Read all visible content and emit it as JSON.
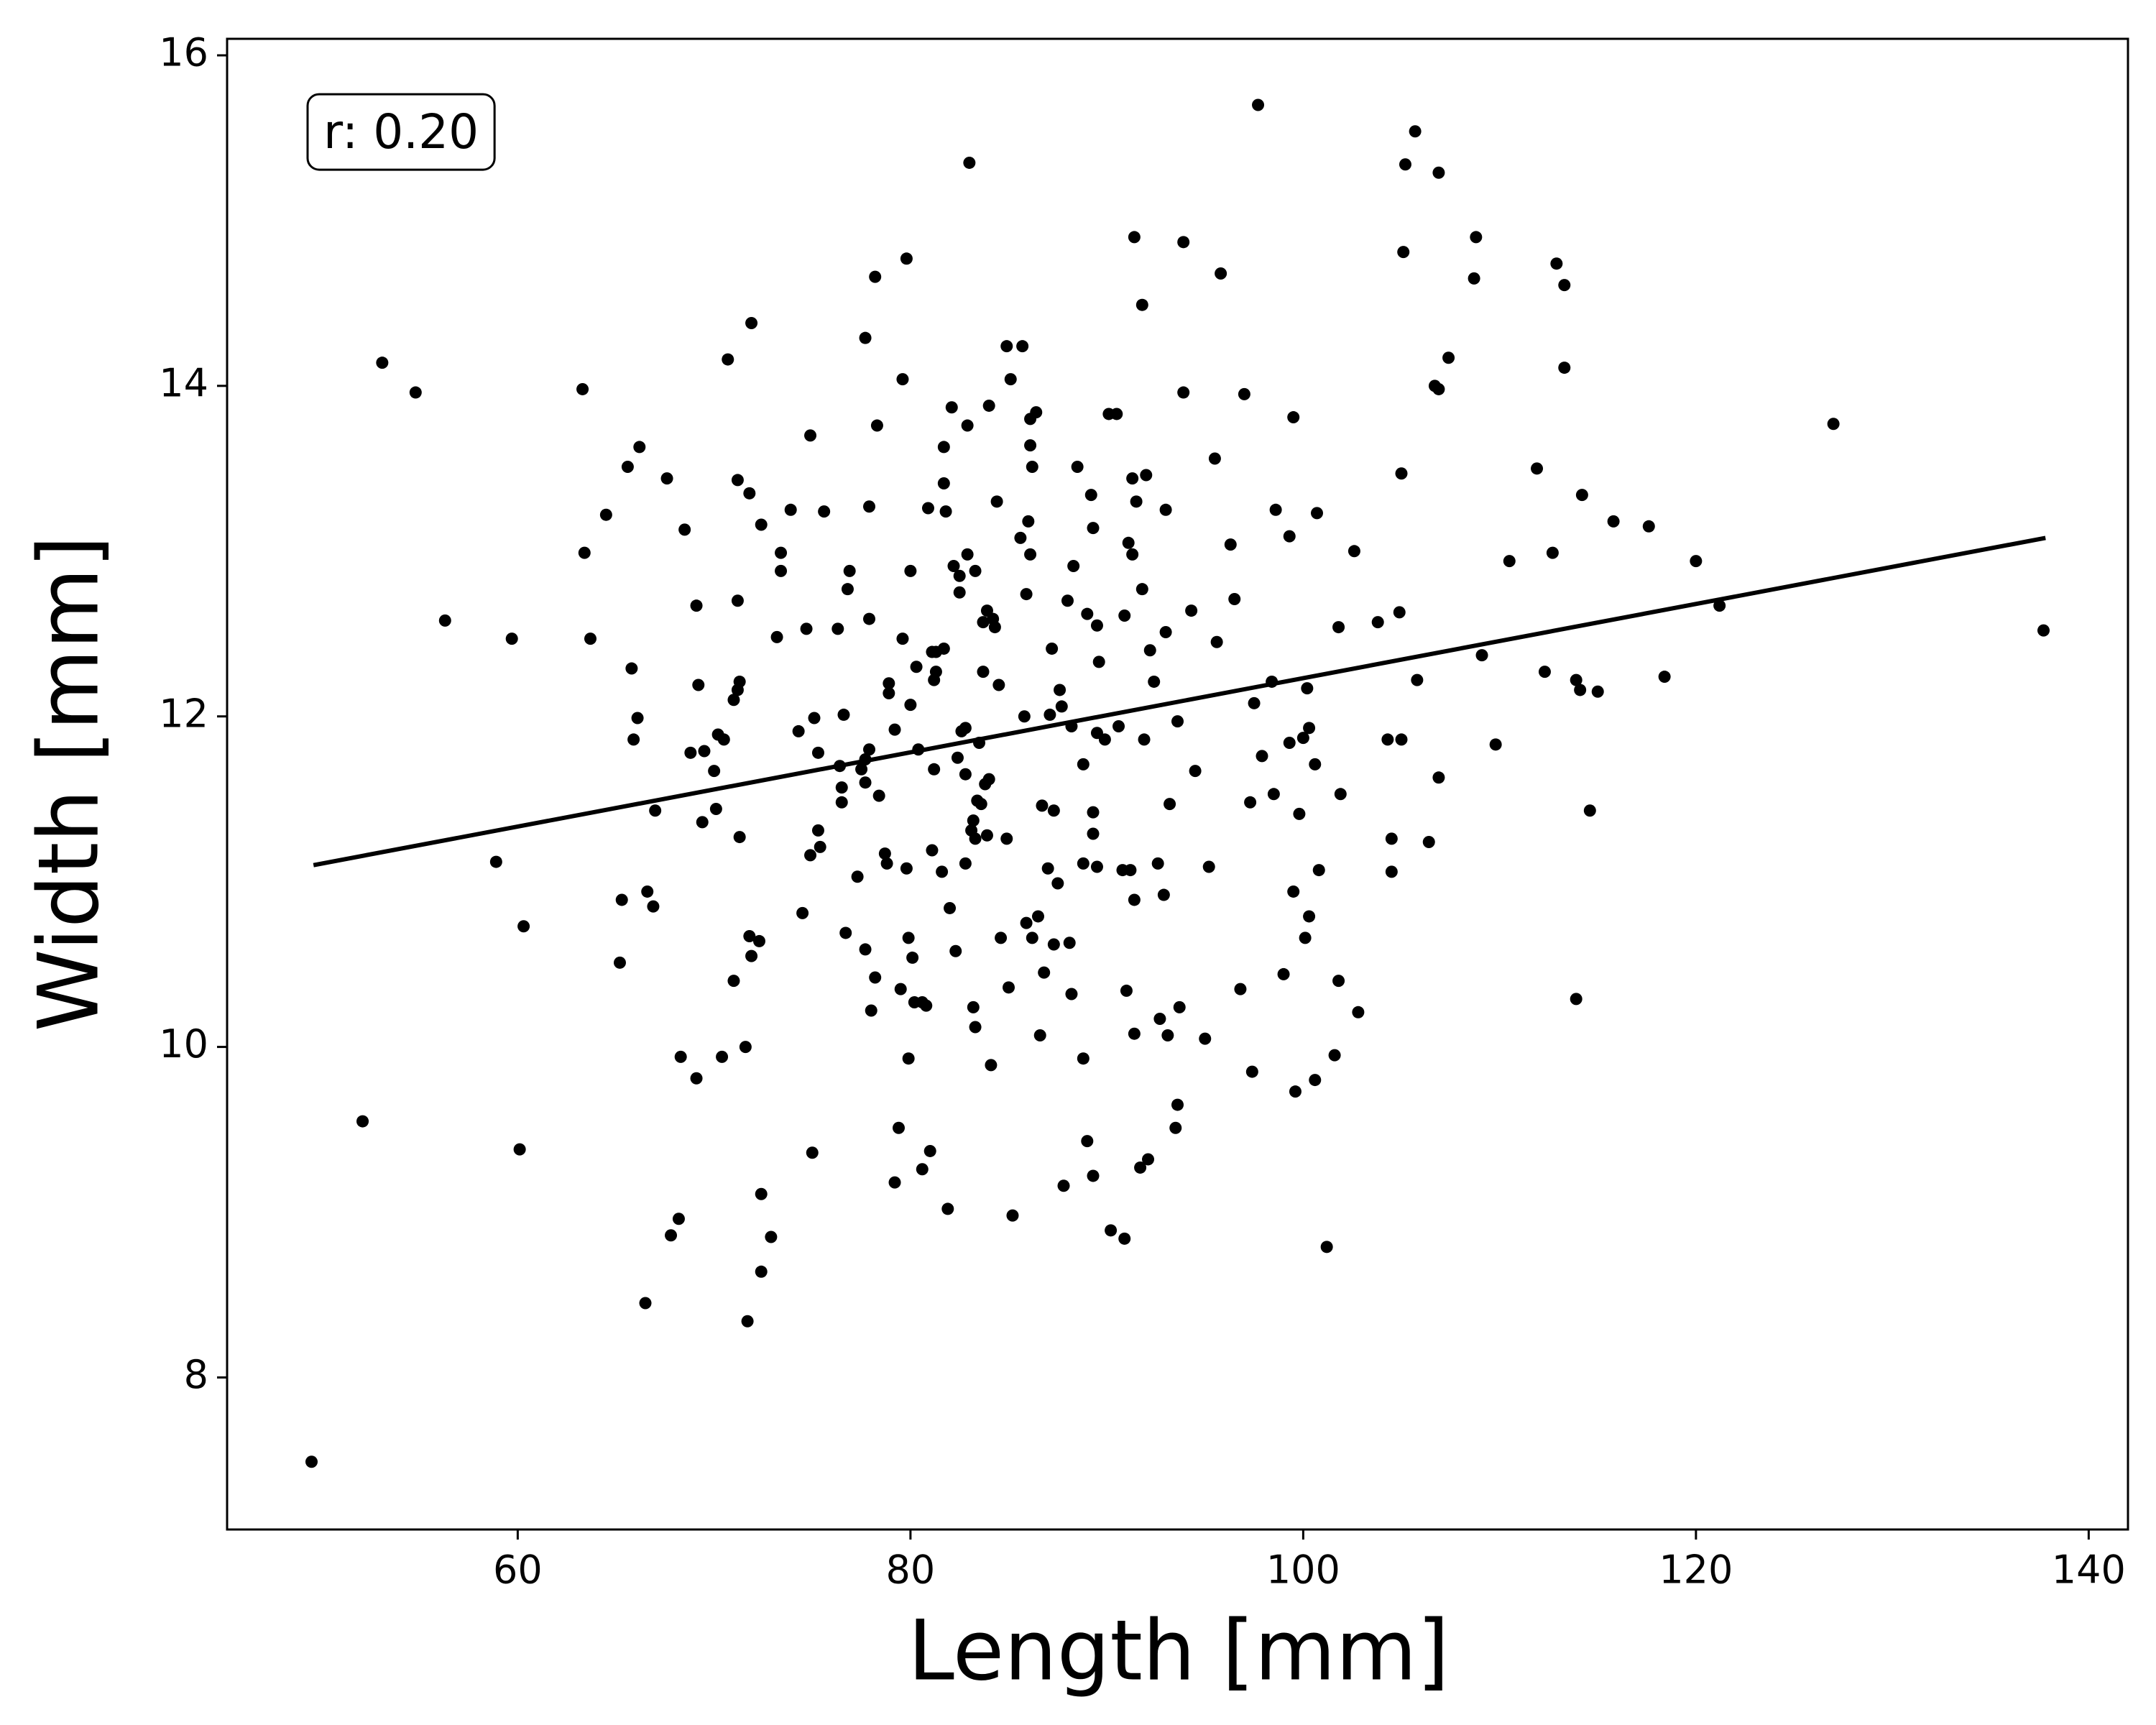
{
  "chart_data": {
    "type": "scatter",
    "xlabel": "Length [mm]",
    "ylabel": "Width [mm]",
    "annotation": "r: 0.20",
    "xlim": [
      45.2,
      142.0
    ],
    "ylim": [
      7.08,
      16.1
    ],
    "xticks": [
      60,
      80,
      100,
      120,
      140
    ],
    "yticks": [
      8,
      10,
      12,
      14,
      16
    ],
    "color": "#000000",
    "fit": {
      "x": [
        49.6,
        137.8
      ],
      "y": [
        11.1,
        13.08
      ],
      "color": "#000000"
    },
    "x": [
      49.5,
      52.1,
      53.1,
      54.8,
      56.3,
      58.9,
      59.7,
      60.1,
      60.3,
      63.3,
      63.4,
      63.7,
      64.5,
      65.2,
      65.3,
      65.6,
      65.8,
      65.9,
      66.1,
      66.2,
      66.5,
      66.6,
      66.9,
      67.0,
      67.6,
      67.8,
      68.2,
      68.3,
      68.5,
      68.8,
      69.1,
      69.1,
      69.2,
      69.4,
      69.5,
      70.0,
      70.1,
      70.2,
      70.4,
      70.5,
      70.7,
      71.0,
      71.0,
      71.2,
      71.2,
      71.2,
      71.3,
      71.3,
      71.6,
      71.7,
      71.8,
      71.8,
      71.9,
      71.9,
      72.3,
      72.4,
      72.4,
      72.4,
      72.9,
      73.2,
      73.4,
      73.4,
      73.9,
      74.3,
      74.5,
      74.7,
      74.9,
      74.9,
      75.0,
      75.1,
      75.3,
      75.3,
      75.4,
      75.6,
      76.3,
      76.4,
      76.5,
      76.5,
      76.6,
      76.7,
      76.8,
      76.9,
      77.3,
      77.5,
      77.7,
      77.7,
      77.7,
      77.7,
      77.9,
      77.9,
      77.9,
      78.0,
      78.2,
      78.2,
      78.3,
      78.4,
      78.7,
      78.8,
      78.9,
      78.9,
      79.2,
      79.2,
      79.4,
      79.5,
      79.6,
      79.6,
      79.8,
      79.8,
      79.9,
      79.9,
      80.0,
      80.0,
      80.1,
      80.2,
      80.3,
      80.4,
      80.6,
      80.6,
      80.8,
      80.9,
      81.0,
      81.1,
      81.1,
      81.2,
      81.2,
      81.3,
      81.3,
      81.6,
      81.7,
      81.7,
      81.7,
      81.8,
      81.9,
      82.0,
      82.1,
      82.2,
      82.3,
      82.4,
      82.5,
      82.5,
      82.6,
      82.8,
      82.8,
      82.8,
      82.9,
      82.9,
      83.0,
      83.1,
      83.2,
      83.2,
      83.3,
      83.3,
      83.3,
      83.4,
      83.5,
      83.6,
      83.7,
      83.7,
      83.8,
      83.9,
      83.9,
      84.0,
      84.0,
      84.1,
      84.2,
      84.3,
      84.4,
      84.5,
      84.6,
      84.9,
      84.9,
      85.0,
      85.1,
      85.2,
      85.6,
      85.7,
      85.8,
      85.9,
      85.9,
      86.0,
      86.1,
      86.1,
      86.1,
      86.2,
      86.2,
      86.4,
      86.5,
      86.6,
      86.7,
      86.8,
      87.0,
      87.1,
      87.2,
      87.3,
      87.3,
      87.5,
      87.6,
      87.7,
      87.8,
      88.0,
      88.1,
      88.2,
      88.2,
      88.3,
      88.5,
      88.8,
      88.8,
      88.8,
      89.0,
      89.0,
      89.2,
      89.3,
      89.3,
      89.3,
      89.3,
      89.5,
      89.5,
      89.5,
      89.6,
      89.9,
      90.1,
      90.2,
      90.5,
      90.6,
      90.8,
      90.9,
      90.9,
      91.0,
      91.1,
      91.2,
      91.3,
      91.3,
      91.4,
      91.4,
      91.4,
      91.5,
      91.7,
      91.8,
      91.8,
      91.9,
      92.0,
      92.1,
      92.2,
      92.4,
      92.6,
      92.7,
      92.9,
      93.0,
      93.0,
      93.1,
      93.2,
      93.5,
      93.6,
      93.6,
      93.7,
      93.9,
      93.9,
      94.3,
      94.5,
      95.0,
      95.2,
      95.5,
      95.6,
      95.8,
      96.3,
      96.5,
      96.8,
      97.0,
      97.3,
      97.4,
      97.5,
      97.7,
      97.9,
      98.4,
      98.5,
      98.6,
      99.0,
      99.3,
      99.3,
      99.5,
      99.5,
      99.6,
      99.8,
      100.0,
      100.1,
      100.2,
      100.3,
      100.3,
      100.6,
      100.6,
      100.7,
      100.8,
      101.2,
      101.6,
      101.8,
      101.8,
      101.9,
      102.6,
      102.8,
      103.8,
      104.3,
      104.5,
      104.5,
      104.9,
      105.0,
      105.0,
      105.1,
      105.2,
      105.7,
      105.8,
      106.4,
      106.7,
      106.9,
      106.9,
      106.9,
      107.4,
      108.7,
      108.8,
      109.1,
      109.8,
      110.5,
      111.9,
      112.3,
      112.7,
      112.9,
      113.3,
      113.3,
      113.9,
      113.9,
      114.1,
      114.2,
      114.6,
      115.0,
      115.8,
      117.6,
      118.4,
      120.0,
      121.2,
      127.0,
      137.7
    ],
    "y": [
      7.49,
      9.55,
      14.14,
      13.96,
      12.58,
      11.12,
      12.47,
      9.38,
      10.73,
      13.98,
      12.99,
      12.47,
      13.22,
      10.51,
      10.89,
      13.51,
      12.29,
      11.86,
      11.99,
      13.63,
      8.45,
      10.94,
      10.85,
      11.43,
      13.44,
      8.86,
      8.96,
      9.94,
      13.13,
      11.78,
      9.81,
      12.67,
      12.19,
      11.36,
      11.79,
      11.67,
      11.44,
      11.89,
      9.94,
      11.86,
      14.16,
      12.1,
      10.4,
      12.16,
      13.43,
      12.7,
      12.21,
      11.27,
      10.0,
      8.34,
      13.35,
      10.67,
      10.55,
      14.38,
      10.64,
      13.16,
      9.11,
      8.64,
      8.85,
      12.48,
      12.99,
      12.88,
      13.25,
      11.91,
      10.81,
      12.53,
      13.7,
      11.16,
      9.36,
      11.99,
      11.78,
      11.31,
      11.21,
      13.24,
      12.53,
      11.7,
      11.57,
      11.48,
      12.01,
      10.69,
      12.77,
      12.88,
      11.03,
      11.68,
      10.59,
      14.29,
      11.6,
      11.74,
      13.27,
      11.8,
      12.59,
      10.22,
      10.42,
      14.66,
      13.76,
      11.52,
      11.17,
      11.11,
      12.14,
      12.2,
      11.92,
      9.18,
      9.51,
      10.35,
      12.47,
      14.04,
      14.77,
      11.08,
      10.66,
      9.93,
      12.88,
      12.07,
      10.54,
      10.27,
      12.3,
      11.8,
      10.27,
      9.26,
      10.25,
      13.26,
      9.37,
      12.39,
      11.19,
      12.22,
      11.68,
      12.27,
      12.39,
      11.06,
      12.41,
      13.63,
      13.41,
      13.24,
      9.02,
      10.84,
      13.87,
      12.91,
      10.58,
      11.75,
      12.85,
      12.75,
      11.91,
      11.93,
      11.11,
      11.65,
      13.76,
      12.98,
      15.35,
      11.31,
      11.37,
      10.24,
      10.12,
      11.26,
      12.88,
      11.49,
      11.84,
      11.47,
      12.57,
      12.27,
      11.59,
      12.64,
      11.28,
      11.62,
      13.88,
      9.89,
      12.59,
      12.54,
      13.3,
      12.19,
      10.66,
      14.24,
      11.26,
      10.36,
      14.04,
      8.98,
      13.08,
      14.24,
      12.0,
      12.74,
      10.75,
      13.18,
      12.98,
      13.8,
      13.64,
      13.51,
      10.66,
      13.84,
      10.79,
      10.07,
      11.46,
      10.45,
      11.08,
      12.01,
      12.41,
      11.43,
      10.62,
      10.99,
      12.16,
      12.06,
      9.16,
      12.7,
      10.63,
      11.94,
      10.32,
      12.91,
      13.51,
      11.71,
      11.11,
      9.93,
      9.43,
      12.62,
      13.34,
      13.14,
      9.22,
      11.29,
      11.42,
      11.9,
      11.09,
      12.55,
      12.33,
      11.86,
      13.83,
      8.89,
      13.83,
      11.94,
      11.07,
      8.84,
      12.61,
      10.34,
      13.05,
      11.07,
      13.44,
      12.98,
      10.89,
      14.9,
      10.08,
      13.3,
      9.27,
      12.77,
      14.49,
      11.86,
      13.46,
      9.32,
      12.4,
      12.21,
      11.11,
      10.17,
      10.92,
      13.25,
      12.51,
      10.07,
      11.47,
      9.51,
      9.65,
      11.97,
      10.24,
      13.96,
      14.87,
      12.64,
      11.67,
      10.05,
      11.09,
      13.56,
      12.45,
      14.68,
      13.04,
      12.71,
      10.35,
      13.95,
      11.48,
      9.85,
      12.08,
      15.7,
      11.76,
      12.21,
      11.53,
      13.25,
      10.44,
      13.09,
      11.84,
      10.94,
      13.81,
      9.73,
      11.41,
      11.87,
      10.66,
      12.17,
      11.93,
      10.79,
      11.71,
      9.8,
      13.23,
      11.07,
      8.79,
      9.95,
      12.54,
      10.4,
      11.53,
      13.0,
      10.21,
      12.57,
      11.86,
      11.26,
      11.06,
      12.63,
      13.47,
      11.86,
      14.81,
      15.34,
      15.54,
      12.22,
      11.24,
      14.0,
      15.29,
      13.98,
      11.63,
      14.17,
      14.65,
      14.9,
      12.37,
      11.83,
      12.94,
      13.5,
      12.27,
      12.99,
      14.74,
      14.61,
      14.11,
      12.22,
      10.29,
      12.16,
      13.34,
      11.43,
      12.15,
      13.18,
      13.15,
      12.24,
      12.94,
      12.67,
      13.77,
      12.52
    ]
  }
}
